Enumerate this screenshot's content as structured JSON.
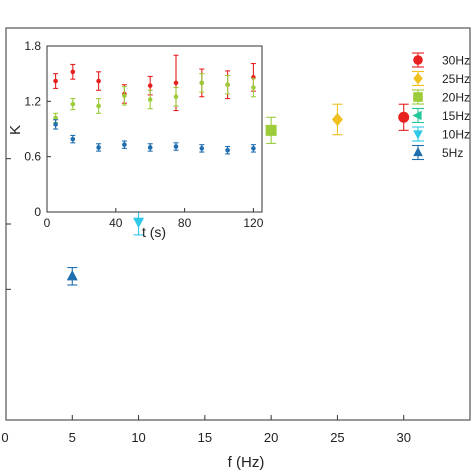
{
  "chart_data": [
    {
      "type": "scatter",
      "title": "",
      "xlabel": "f (Hz)",
      "ylabel": "",
      "xlim": [
        0,
        35
      ],
      "ylim": [
        0,
        1.8
      ],
      "x_ticks": [
        "0",
        "5",
        "10",
        "15",
        "20",
        "25",
        "30"
      ],
      "grid": false,
      "legend_position": "top-right",
      "series": [
        {
          "name": "5Hz",
          "color": "#1f6fb0",
          "marker": "triangle-up",
          "x": [
            5
          ],
          "y": [
            0.66
          ],
          "err": [
            0.04
          ]
        },
        {
          "name": "10Hz",
          "color": "#2ec8e8",
          "marker": "triangle-down",
          "x": [
            10
          ],
          "y": [
            0.91
          ],
          "err": [
            0.06
          ]
        },
        {
          "name": "15Hz",
          "color": "#22c79a",
          "marker": "triangle-left",
          "x": [
            15
          ],
          "y": [
            1.25
          ],
          "err": [
            0.07
          ]
        },
        {
          "name": "20Hz",
          "color": "#9ccc3a",
          "marker": "square",
          "x": [
            20
          ],
          "y": [
            1.33
          ],
          "err": [
            0.06
          ]
        },
        {
          "name": "25Hz",
          "color": "#f0c020",
          "marker": "diamond",
          "x": [
            25
          ],
          "y": [
            1.38
          ],
          "err": [
            0.07
          ]
        },
        {
          "name": "30Hz",
          "color": "#e82020",
          "marker": "circle",
          "x": [
            30
          ],
          "y": [
            1.39
          ],
          "err": [
            0.06
          ]
        }
      ]
    },
    {
      "type": "scatter",
      "title": "",
      "xlabel": "t (s)",
      "ylabel": "K",
      "xlim": [
        0,
        125
      ],
      "ylim": [
        0,
        1.8
      ],
      "x_ticks": [
        "0",
        "40",
        "80",
        "120"
      ],
      "y_ticks": [
        "0",
        "0.6",
        "1.2",
        "1.8"
      ],
      "grid": false,
      "series": [
        {
          "name": "30Hz",
          "color": "#e82020",
          "x": [
            5,
            15,
            30,
            45,
            60,
            75,
            90,
            105,
            120
          ],
          "y": [
            1.42,
            1.52,
            1.42,
            1.28,
            1.37,
            1.4,
            1.4,
            1.38,
            1.46
          ],
          "err": [
            0.08,
            0.08,
            0.1,
            0.1,
            0.1,
            0.3,
            0.15,
            0.15,
            0.15
          ]
        },
        {
          "name": "20Hz",
          "color": "#9ccc3a",
          "x": [
            5,
            15,
            30,
            45,
            60,
            75,
            90,
            105,
            120
          ],
          "y": [
            1.02,
            1.17,
            1.15,
            1.26,
            1.22,
            1.25,
            1.4,
            1.38,
            1.35
          ],
          "err": [
            0.05,
            0.06,
            0.08,
            0.1,
            0.1,
            0.1,
            0.1,
            0.1,
            0.1
          ]
        },
        {
          "name": "5Hz",
          "color": "#1f6fb0",
          "x": [
            5,
            15,
            30,
            45,
            60,
            75,
            90,
            105,
            120
          ],
          "y": [
            0.95,
            0.79,
            0.7,
            0.73,
            0.7,
            0.71,
            0.69,
            0.67,
            0.69
          ],
          "err": [
            0.05,
            0.04,
            0.04,
            0.04,
            0.04,
            0.04,
            0.04,
            0.04,
            0.04
          ]
        }
      ]
    }
  ]
}
